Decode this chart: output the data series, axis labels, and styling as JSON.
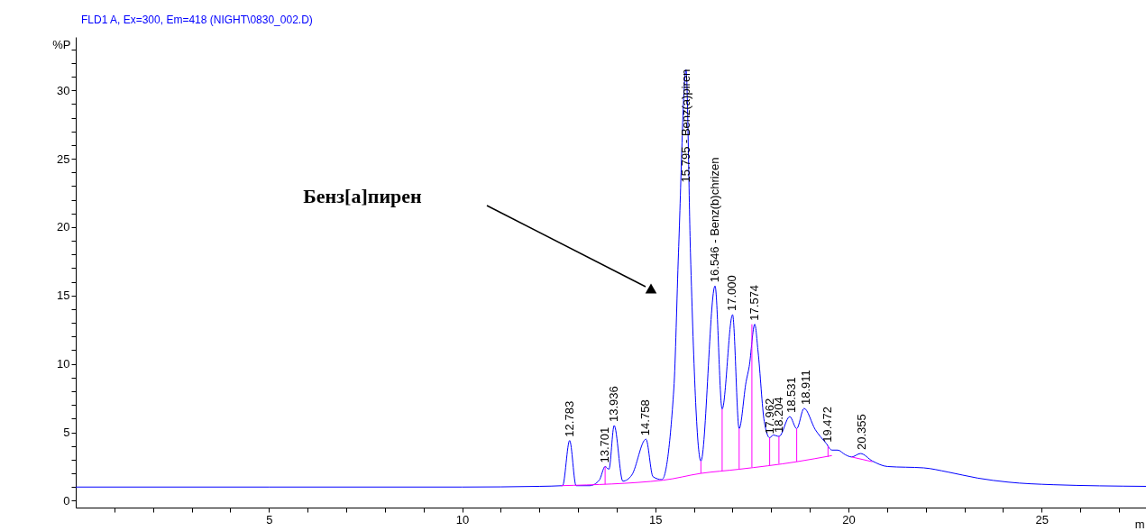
{
  "chart_data": {
    "type": "line",
    "title": "FLD1 A, Ex=300, Em=418 (NIGHT\\0830_002.D)",
    "xlabel": "m",
    "ylabel": "%P",
    "xlim": [
      0,
      27.7
    ],
    "ylim": [
      -0.5,
      33.9
    ],
    "xticks": [
      {
        "value": 1,
        "label": null
      },
      {
        "value": 2,
        "label": null
      },
      {
        "value": 3,
        "label": null
      },
      {
        "value": 4,
        "label": null
      },
      5,
      {
        "value": 6,
        "label": null
      },
      {
        "value": 7,
        "label": null
      },
      {
        "value": 8,
        "label": null
      },
      {
        "value": 9,
        "label": null
      },
      10,
      {
        "value": 11,
        "label": null
      },
      {
        "value": 12,
        "label": null
      },
      {
        "value": 13,
        "label": null
      },
      {
        "value": 14,
        "label": null
      },
      15,
      {
        "value": 16,
        "label": null
      },
      {
        "value": 17,
        "label": null
      },
      {
        "value": 18,
        "label": null
      },
      {
        "value": 19,
        "label": null
      },
      20,
      {
        "value": 21,
        "label": null
      },
      {
        "value": 22,
        "label": null
      },
      {
        "value": 23,
        "label": null
      },
      {
        "value": 24,
        "label": null
      },
      25,
      {
        "value": 26,
        "label": null
      },
      {
        "value": 27,
        "label": null
      }
    ],
    "yticks": [
      0,
      {
        "value": 1,
        "label": null
      },
      {
        "value": 2,
        "label": null
      },
      {
        "value": 3,
        "label": null
      },
      {
        "value": 4,
        "label": null
      },
      5,
      {
        "value": 6,
        "label": null
      },
      {
        "value": 7,
        "label": null
      },
      {
        "value": 8,
        "label": null
      },
      {
        "value": 9,
        "label": null
      },
      10,
      {
        "value": 11,
        "label": null
      },
      {
        "value": 12,
        "label": null
      },
      {
        "value": 13,
        "label": null
      },
      {
        "value": 14,
        "label": null
      },
      15,
      {
        "value": 16,
        "label": null
      },
      {
        "value": 17,
        "label": null
      },
      {
        "value": 18,
        "label": null
      },
      {
        "value": 19,
        "label": null
      },
      20,
      {
        "value": 21,
        "label": null
      },
      {
        "value": 22,
        "label": null
      },
      {
        "value": 23,
        "label": null
      },
      {
        "value": 24,
        "label": null
      },
      25,
      {
        "value": 26,
        "label": null
      },
      {
        "value": 27,
        "label": null
      },
      {
        "value": 28,
        "label": null
      },
      {
        "value": 29,
        "label": null
      },
      30,
      {
        "value": 31,
        "label": null
      },
      {
        "value": 32,
        "label": null
      },
      {
        "value": 33,
        "label": null
      }
    ],
    "grid": false,
    "line_style": "solid",
    "series": [
      {
        "color": "#0000ff",
        "x": [
          0,
          5,
          10,
          12.0,
          12.6,
          12.783,
          12.95,
          13.3,
          13.55,
          13.701,
          13.8,
          13.936,
          14.16,
          14.39,
          14.758,
          14.94,
          15.17,
          15.48,
          15.6,
          15.795,
          15.91,
          16.18,
          16.546,
          16.73,
          17.0,
          17.17,
          17.35,
          17.43,
          17.574,
          17.66,
          17.82,
          17.962,
          18.05,
          18.204,
          18.48,
          18.66,
          18.85,
          19.14,
          19.42,
          19.57,
          19.72,
          19.92,
          20.08,
          20.31,
          20.62,
          21.01,
          21.95,
          22.57,
          23.35,
          24.13,
          25.3,
          27.7
        ],
        "values": [
          1.0,
          1.0,
          1.0,
          1.05,
          1.1,
          4.4,
          1.1,
          1.1,
          1.5,
          2.5,
          2.3,
          5.5,
          1.43,
          1.87,
          4.5,
          1.76,
          1.54,
          8.2,
          18.1,
          31.5,
          18.1,
          2.9,
          15.7,
          6.7,
          13.6,
          5.27,
          8.7,
          9.8,
          12.9,
          10.9,
          5.8,
          4.6,
          4.8,
          4.7,
          6.15,
          5.27,
          6.75,
          5.2,
          4.2,
          3.7,
          3.7,
          3.36,
          3.2,
          3.45,
          2.9,
          2.5,
          2.4,
          2.1,
          1.65,
          1.36,
          1.17,
          1.05
        ]
      },
      {
        "color": "#ff00ff",
        "x": [
          12.56,
          15.2,
          16.18,
          17.17,
          18.66,
          19.57,
          null,
          20.08,
          20.62
        ],
        "values": [
          1.1,
          1.5,
          2.0,
          2.3,
          2.85,
          3.3,
          null,
          3.2,
          2.85
        ]
      },
      {
        "color": "#ff00ff",
        "x": [
          13.701,
          13.701,
          null,
          16.18,
          16.18,
          null,
          16.73,
          16.73,
          null,
          17.17,
          17.17,
          null,
          17.5,
          17.5,
          null,
          17.96,
          17.96,
          null,
          18.2,
          18.2,
          null,
          18.66,
          18.66,
          null,
          19.47,
          19.47
        ],
        "values": [
          1.2,
          2.5,
          null,
          2.0,
          2.9,
          null,
          2.15,
          6.7,
          null,
          2.3,
          5.27,
          null,
          2.45,
          12.9,
          null,
          2.6,
          4.6,
          null,
          2.7,
          4.7,
          null,
          2.85,
          5.27,
          null,
          3.2,
          4.0
        ]
      }
    ],
    "annotations": [
      "Бенз[а]пирен",
      {
        "text": "12.783",
        "x": 12.783,
        "y": 4.4
      },
      {
        "text": "13.701",
        "x": 13.701,
        "y": 2.5
      },
      {
        "text": "13.936",
        "x": 13.936,
        "y": 5.5
      },
      {
        "text": "14.758",
        "x": 14.758,
        "y": 4.5
      },
      {
        "text": "15.795 - Benz(a)piren",
        "x": 15.795,
        "y": 23
      },
      {
        "text": "16.546 - Benz(b)chrizen",
        "x": 16.546,
        "y": 15.7
      },
      {
        "text": "17.000",
        "x": 17.0,
        "y": 13.6
      },
      {
        "text": "17.574",
        "x": 17.574,
        "y": 12.9
      },
      {
        "text": "17.962",
        "x": 17.962,
        "y": 4.6
      },
      {
        "text": "18.204",
        "x": 18.204,
        "y": 4.7
      },
      {
        "text": "18.531",
        "x": 18.531,
        "y": 6.15
      },
      {
        "text": "18.911",
        "x": 18.911,
        "y": 6.75
      },
      {
        "text": "19.472",
        "x": 19.472,
        "y": 4.0
      },
      {
        "text": "20.355",
        "x": 20.355,
        "y": 3.45
      }
    ]
  }
}
